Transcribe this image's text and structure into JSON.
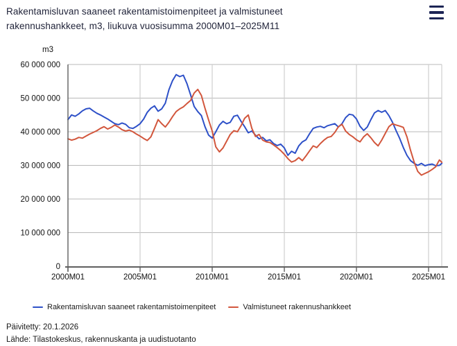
{
  "header": {
    "title": "Rakentamisluvan saaneet rakentamistoimenpiteet ja valmistuneet rakennushankkeet, m3, liukuva vuosisumma 2000M01–2025M11"
  },
  "menu": {
    "icon": "hamburger-icon"
  },
  "chart_data": {
    "type": "line",
    "title": "Rakentamisluvan saaneet rakentamistoimenpiteet ja valmistuneet rakennushankkeet, m3, liukuva vuosisumma 2000M01–2025M11",
    "unit_label": "m3",
    "grid": true,
    "legend_position": "bottom",
    "y_axis": {
      "min": 0,
      "max": 60000000,
      "tick_interval": 10000000,
      "tick_values_million": [
        0,
        10,
        20,
        30,
        40,
        50,
        60
      ],
      "tick_labels": [
        "0",
        "10 000 000",
        "20 000 000",
        "30 000 000",
        "40 000 000",
        "50 000 000",
        "60 000 000"
      ]
    },
    "x_axis": {
      "range_years": [
        2000.0,
        2025.92
      ],
      "tick_values": [
        2000,
        2005,
        2010,
        2015,
        2020,
        2025
      ],
      "tick_labels": [
        "2000M01",
        "2005M01",
        "2010M01",
        "2015M01",
        "2020M01",
        "2025M01"
      ]
    },
    "x_years": [
      2000.0,
      2000.25,
      2000.5,
      2000.75,
      2001.0,
      2001.25,
      2001.5,
      2001.75,
      2002.0,
      2002.25,
      2002.5,
      2002.75,
      2003.0,
      2003.25,
      2003.5,
      2003.75,
      2004.0,
      2004.25,
      2004.5,
      2004.75,
      2005.0,
      2005.25,
      2005.5,
      2005.75,
      2006.0,
      2006.25,
      2006.5,
      2006.75,
      2007.0,
      2007.25,
      2007.5,
      2007.75,
      2008.0,
      2008.25,
      2008.5,
      2008.75,
      2009.0,
      2009.25,
      2009.5,
      2009.75,
      2010.0,
      2010.25,
      2010.5,
      2010.75,
      2011.0,
      2011.25,
      2011.5,
      2011.75,
      2012.0,
      2012.25,
      2012.5,
      2012.75,
      2013.0,
      2013.25,
      2013.5,
      2013.75,
      2014.0,
      2014.25,
      2014.5,
      2014.75,
      2015.0,
      2015.25,
      2015.5,
      2015.75,
      2016.0,
      2016.25,
      2016.5,
      2016.75,
      2017.0,
      2017.25,
      2017.5,
      2017.75,
      2018.0,
      2018.25,
      2018.5,
      2018.75,
      2019.0,
      2019.25,
      2019.5,
      2019.75,
      2020.0,
      2020.25,
      2020.5,
      2020.75,
      2021.0,
      2021.25,
      2021.5,
      2021.75,
      2022.0,
      2022.25,
      2022.5,
      2022.75,
      2023.0,
      2023.25,
      2023.5,
      2023.75,
      2024.0,
      2024.25,
      2024.5,
      2024.75,
      2025.0,
      2025.25,
      2025.5,
      2025.75,
      2025.92
    ],
    "series": [
      {
        "name": "Rakentamisluvan saaneet rakentamistoimenpiteet",
        "color": "#2d50c8",
        "values_million_m3": [
          43.6,
          45.0,
          44.6,
          45.3,
          46.2,
          46.8,
          47.0,
          46.2,
          45.5,
          45.0,
          44.4,
          43.8,
          43.1,
          42.4,
          42.1,
          42.6,
          42.2,
          41.2,
          41.0,
          41.6,
          42.4,
          43.8,
          45.8,
          47.0,
          47.7,
          46.1,
          46.8,
          48.5,
          52.5,
          55.2,
          57.0,
          56.4,
          56.8,
          54.3,
          51.0,
          47.5,
          46.0,
          44.8,
          41.5,
          39.0,
          38.1,
          40.0,
          42.0,
          43.1,
          42.4,
          42.8,
          44.6,
          44.9,
          43.1,
          41.5,
          39.7,
          40.2,
          39.0,
          37.9,
          38.3,
          37.3,
          37.6,
          36.5,
          35.9,
          36.3,
          35.2,
          33.0,
          34.2,
          33.6,
          35.8,
          37.0,
          37.6,
          39.4,
          41.0,
          41.4,
          41.6,
          41.2,
          41.8,
          42.1,
          42.4,
          41.4,
          42.4,
          44.2,
          45.2,
          45.0,
          43.8,
          41.6,
          40.4,
          41.4,
          43.6,
          45.6,
          46.3,
          45.8,
          46.3,
          44.8,
          42.8,
          40.3,
          38.0,
          35.3,
          33.0,
          31.4,
          30.6,
          30.0,
          30.6,
          29.9,
          30.2,
          30.4,
          29.9,
          30.0,
          30.6
        ]
      },
      {
        "name": "Valmistuneet rakennushankkeet",
        "color": "#d2563c",
        "values_million_m3": [
          37.9,
          37.5,
          37.8,
          38.3,
          38.1,
          38.7,
          39.3,
          39.8,
          40.3,
          41.0,
          41.5,
          40.8,
          41.3,
          42.0,
          41.4,
          40.6,
          40.2,
          40.5,
          40.0,
          39.3,
          38.7,
          38.0,
          37.4,
          38.5,
          41.0,
          43.6,
          42.4,
          41.4,
          42.8,
          44.5,
          46.0,
          46.8,
          47.4,
          48.4,
          49.3,
          51.5,
          52.6,
          50.8,
          47.0,
          43.5,
          40.2,
          35.5,
          34.0,
          35.2,
          37.2,
          39.2,
          40.3,
          40.0,
          41.8,
          44.0,
          45.0,
          41.0,
          38.6,
          39.2,
          37.5,
          37.0,
          36.8,
          36.1,
          35.3,
          34.4,
          33.3,
          32.0,
          31.0,
          31.4,
          32.3,
          31.4,
          32.8,
          34.3,
          35.8,
          35.3,
          36.5,
          37.5,
          38.3,
          38.6,
          39.8,
          41.5,
          42.2,
          40.2,
          39.2,
          38.5,
          37.6,
          37.0,
          38.5,
          39.4,
          38.2,
          36.8,
          35.8,
          37.5,
          39.5,
          41.5,
          42.4,
          42.0,
          41.7,
          41.3,
          38.5,
          34.5,
          31.0,
          28.2,
          27.1,
          27.6,
          28.1,
          28.8,
          29.6,
          31.6,
          30.9
        ]
      }
    ],
    "colors": {
      "grid_horizontal": "#b8b8b8",
      "grid_vertical": "#cfcfcf",
      "axis_line": "#5f5f5f",
      "tick_text": "#111111"
    }
  },
  "legend": {
    "items": [
      {
        "label": "Rakentamisluvan saaneet rakentamistoimenpiteet",
        "color": "#2d50c8"
      },
      {
        "label": "Valmistuneet rakennushankkeet",
        "color": "#d2563c"
      }
    ]
  },
  "footer": {
    "updated": "Päivitetty: 20.1.2026",
    "source": "Lähde: Tilastokeskus, rakennuskanta ja uudistuotanto"
  }
}
